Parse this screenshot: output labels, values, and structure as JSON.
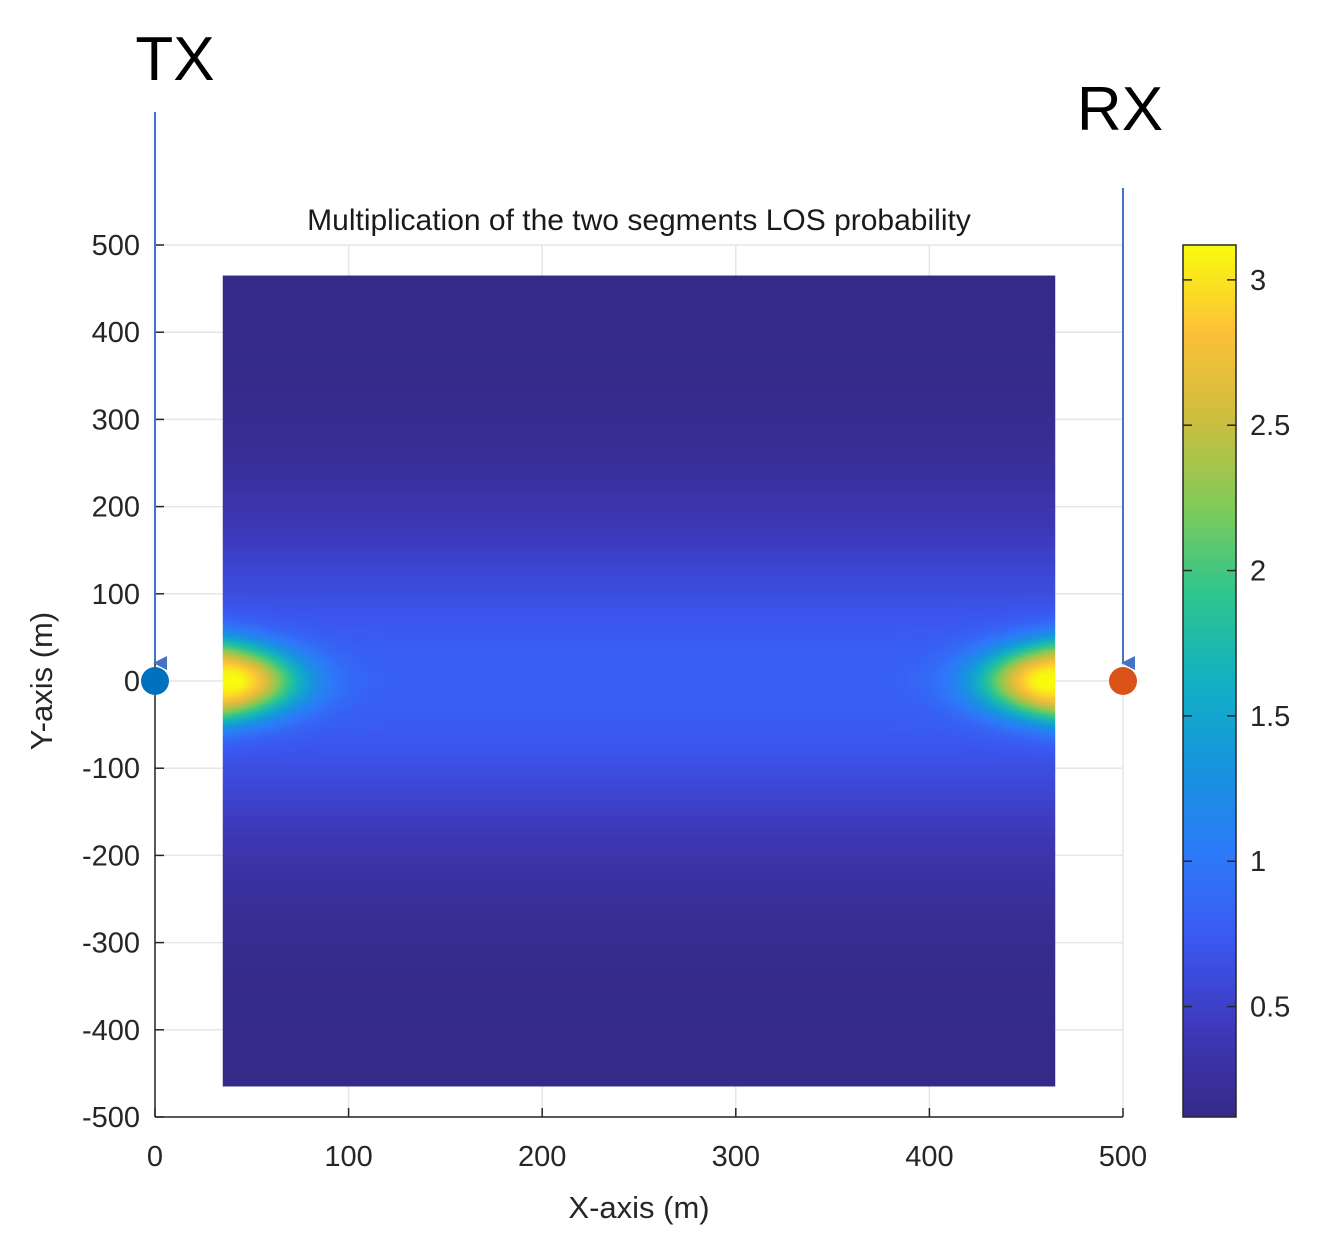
{
  "chart_data": {
    "type": "heatmap",
    "title": "Multiplication of the two segments LOS probability",
    "xlabel": "X-axis (m)",
    "ylabel": "Y-axis (m)",
    "xlim": [
      0,
      500
    ],
    "ylim": [
      -500,
      500
    ],
    "x_ticks": [
      "0",
      "100",
      "200",
      "300",
      "400",
      "500"
    ],
    "y_ticks": [
      "500",
      "400",
      "300",
      "200",
      "100",
      "0",
      "-100",
      "-200",
      "-300",
      "-400",
      "-500"
    ],
    "grid": true,
    "heatmap_extent": {
      "x": [
        35,
        465
      ],
      "y": [
        -465,
        465
      ]
    },
    "peak_value": 3.1,
    "min_value": 0.12,
    "colormap": "parula",
    "colorbar": {
      "range": [
        0.12,
        3.12
      ],
      "ticks": [
        "3",
        "2.5",
        "2",
        "1.5",
        "1",
        "0.5"
      ],
      "placement": "right"
    },
    "markers": [
      {
        "name": "TX",
        "label": "TX",
        "x": 0,
        "y": 0,
        "color": "#0072bd"
      },
      {
        "name": "RX",
        "label": "RX",
        "x": 500,
        "y": 0,
        "color": "#d95319"
      }
    ],
    "arrow_color": "#4472c4"
  }
}
